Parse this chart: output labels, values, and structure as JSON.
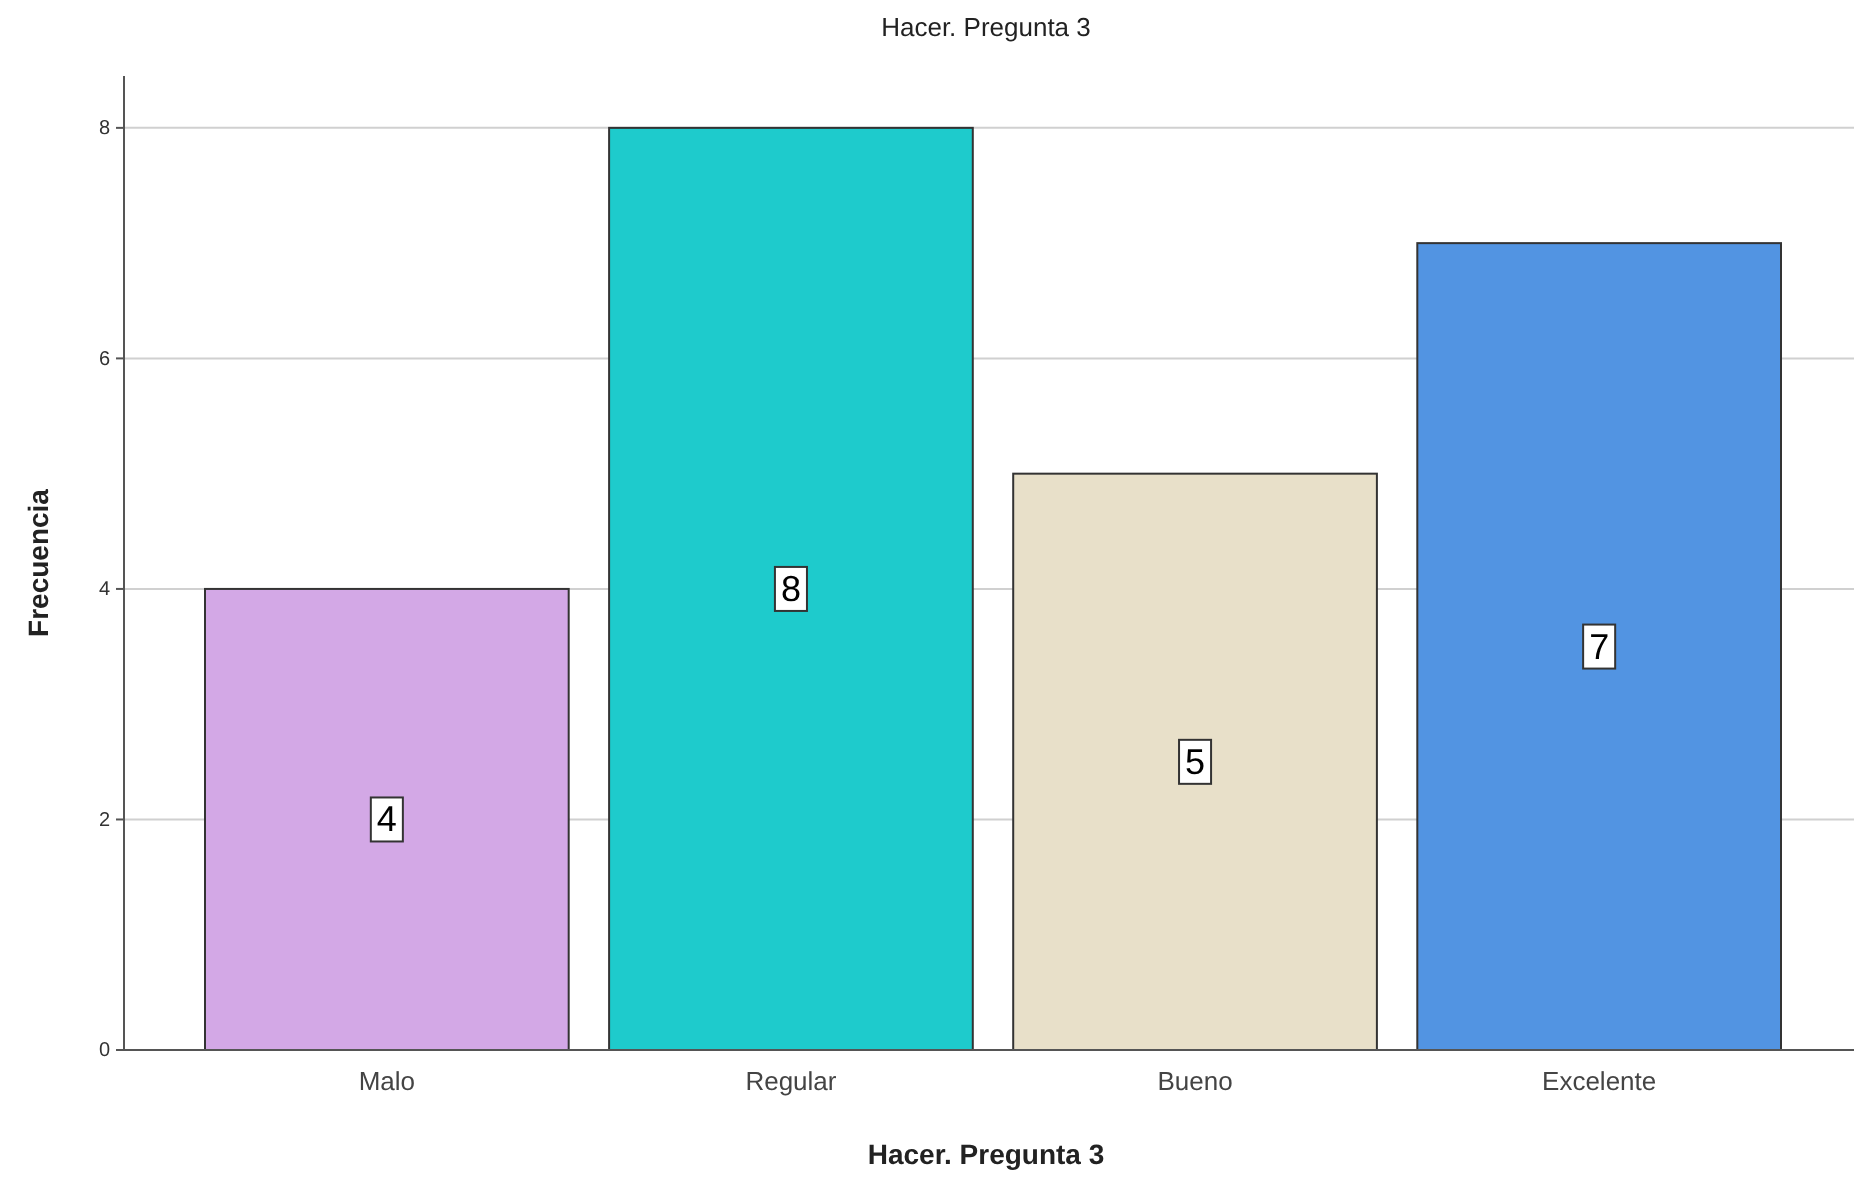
{
  "chart_data": {
    "type": "bar",
    "title": "Hacer. Pregunta 3",
    "xlabel": "Hacer. Pregunta 3",
    "ylabel": "Frecuencia",
    "categories": [
      "Malo",
      "Regular",
      "Bueno",
      "Excelente"
    ],
    "values": [
      4,
      8,
      5,
      7
    ],
    "colors": [
      "#d3a8e6",
      "#1ecbcc",
      "#e8e0c9",
      "#5294e2"
    ],
    "ylim": [
      0,
      8.45
    ],
    "yticks": [
      0,
      2,
      4,
      6,
      8
    ],
    "grid": "y",
    "data_labels": true
  }
}
